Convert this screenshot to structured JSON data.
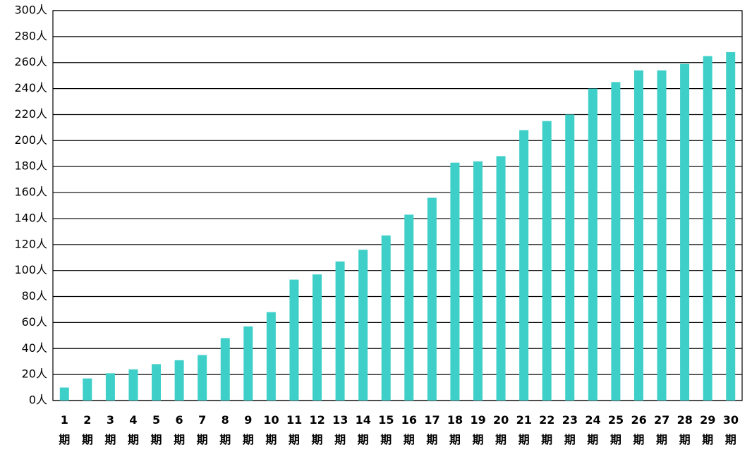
{
  "chart_data": {
    "type": "bar",
    "categories": [
      "1期",
      "2期",
      "3期",
      "4期",
      "5期",
      "6期",
      "7期",
      "8期",
      "9期",
      "10期",
      "11期",
      "12期",
      "13期",
      "14期",
      "15期",
      "16期",
      "17期",
      "18期",
      "19期",
      "20期",
      "21期",
      "22期",
      "23期",
      "24期",
      "25期",
      "26期",
      "27期",
      "28期",
      "29期",
      "30期"
    ],
    "values": [
      10,
      17,
      21,
      24,
      28,
      31,
      35,
      48,
      57,
      68,
      93,
      97,
      107,
      116,
      127,
      143,
      156,
      183,
      184,
      188,
      208,
      215,
      220,
      240,
      245,
      254,
      254,
      259,
      265,
      268
    ],
    "color": "#3ecfc9",
    "ylim": [
      0,
      300
    ],
    "yticks": [
      {
        "value": 0,
        "label": "0人"
      },
      {
        "value": 20,
        "label": "20人"
      },
      {
        "value": 40,
        "label": "40人"
      },
      {
        "value": 60,
        "label": "60人"
      },
      {
        "value": 80,
        "label": "80人"
      },
      {
        "value": 100,
        "label": "100人"
      },
      {
        "value": 120,
        "label": "120人"
      },
      {
        "value": 140,
        "label": "140人"
      },
      {
        "value": 160,
        "label": "160人"
      },
      {
        "value": 180,
        "label": "180人"
      },
      {
        "value": 200,
        "label": "200人"
      },
      {
        "value": 220,
        "label": "220人"
      },
      {
        "value": 240,
        "label": "240人"
      },
      {
        "value": 260,
        "label": "260人"
      },
      {
        "value": 280,
        "label": "280人"
      },
      {
        "value": 300,
        "label": "300人"
      }
    ],
    "grid": true
  }
}
